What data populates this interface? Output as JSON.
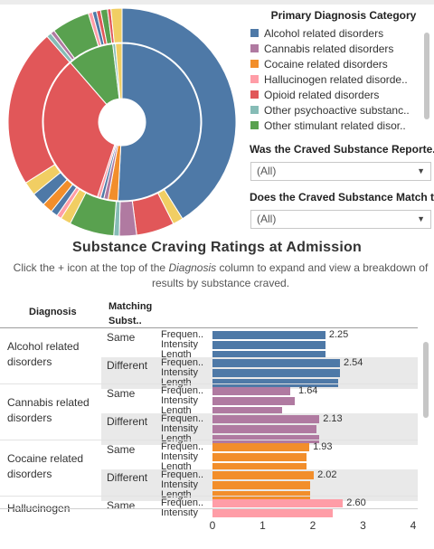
{
  "legend": {
    "title": "Primary Diagnosis Category",
    "items": [
      {
        "label": "Alcohol related disorders",
        "color": "#4e79a7"
      },
      {
        "label": "Cannabis related disorders",
        "color": "#b07aa1"
      },
      {
        "label": "Cocaine related disorders",
        "color": "#f28e2b"
      },
      {
        "label": "Hallucinogen related disorde..",
        "color": "#ff9da7"
      },
      {
        "label": "Opioid related disorders",
        "color": "#e15759"
      },
      {
        "label": "Other psychoactive substanc..",
        "color": "#86bcb6"
      },
      {
        "label": "Other stimulant related disor..",
        "color": "#59a14f"
      }
    ]
  },
  "filters": [
    {
      "title": "Was the  Craved Substance Reporte..",
      "value": "(All)"
    },
    {
      "title": "Does the Craved Substance Match t..",
      "value": "(All)"
    }
  ],
  "report": {
    "title": "Substance Craving Ratings at Admission",
    "subtitle_pre": "Click the + icon at the top of the ",
    "subtitle_em": "Diagnosis",
    "subtitle_post": " column to expand and view a breakdown of results by substance craved.",
    "col_diagnosis": "Diagnosis",
    "col_matching": "Matching Subst.."
  },
  "donut": {
    "outer": [
      {
        "color": "#4e79a7",
        "value": 42.0
      },
      {
        "color": "#f1ce63",
        "value": 1.5
      },
      {
        "color": "#e15759",
        "value": 5.5
      },
      {
        "color": "#b07aa1",
        "value": 2.5
      },
      {
        "color": "#86bcb6",
        "value": 0.8
      },
      {
        "color": "#59a14f",
        "value": 6.5
      },
      {
        "color": "#f1ce63",
        "value": 1.5
      },
      {
        "color": "#ff9da7",
        "value": 0.7
      },
      {
        "color": "#4e79a7",
        "value": 1.0
      },
      {
        "color": "#f28e2b",
        "value": 1.5
      },
      {
        "color": "#4e79a7",
        "value": 2.0
      },
      {
        "color": "#f1ce63",
        "value": 2.0
      },
      {
        "color": "#e15759",
        "value": 23.0
      },
      {
        "color": "#86bcb6",
        "value": 0.7
      },
      {
        "color": "#b07aa1",
        "value": 0.6
      },
      {
        "color": "#59a14f",
        "value": 5.5
      },
      {
        "color": "#ff9da7",
        "value": 0.6
      },
      {
        "color": "#4e79a7",
        "value": 0.6
      },
      {
        "color": "#e15759",
        "value": 0.6
      },
      {
        "color": "#59a14f",
        "value": 1.0
      },
      {
        "color": "#e15759",
        "value": 0.5
      },
      {
        "color": "#f1ce63",
        "value": 1.6
      }
    ],
    "inner": [
      {
        "color": "#4e79a7",
        "value": 45.5
      },
      {
        "color": "#f28e2b",
        "value": 1.8
      },
      {
        "color": "#b07aa1",
        "value": 0.8
      },
      {
        "color": "#4e79a7",
        "value": 0.6
      },
      {
        "color": "#ff9da7",
        "value": 0.6
      },
      {
        "color": "#e15759",
        "value": 30.0
      },
      {
        "color": "#59a14f",
        "value": 8.5
      },
      {
        "color": "#86bcb6",
        "value": 0.5
      },
      {
        "color": "#f1ce63",
        "value": 1.2
      }
    ]
  },
  "chart_data": {
    "type": "bar",
    "orientation": "horizontal",
    "title": "Substance Craving Ratings at Admission",
    "xlim": [
      0,
      4
    ],
    "x_ticks": [
      "0",
      "1",
      "2",
      "3",
      "4"
    ],
    "groups": [
      {
        "diagnosis": "Alcohol related disorders",
        "color": "#4e79a7",
        "rows": [
          {
            "match": "Same",
            "measures": [
              "Frequen..",
              "Intensity",
              "Length"
            ],
            "values": [
              2.25,
              2.25,
              2.25
            ],
            "label": "2.25"
          },
          {
            "match": "Different",
            "measures": [
              "Frequen..",
              "Intensity",
              "Length"
            ],
            "values": [
              2.54,
              2.54,
              2.5
            ],
            "label": "2.54"
          }
        ]
      },
      {
        "diagnosis": "Cannabis related disorders",
        "color": "#b07aa1",
        "rows": [
          {
            "match": "Same",
            "measures": [
              "Frequen..",
              "Intensity",
              "Length"
            ],
            "values": [
              1.55,
              1.64,
              1.38
            ],
            "label": "1.64"
          },
          {
            "match": "Different",
            "measures": [
              "Frequen..",
              "Intensity",
              "Length"
            ],
            "values": [
              2.13,
              2.08,
              2.13
            ],
            "label": "2.13"
          }
        ]
      },
      {
        "diagnosis": "Cocaine related disorders",
        "color": "#f28e2b",
        "rows": [
          {
            "match": "Same",
            "measures": [
              "Frequen..",
              "Intensity",
              "Length"
            ],
            "values": [
              1.93,
              1.87,
              1.88
            ],
            "label": "1.93"
          },
          {
            "match": "Different",
            "measures": [
              "Frequen..",
              "Intensity",
              "Length"
            ],
            "values": [
              2.02,
              1.95,
              1.95
            ],
            "label": "2.02"
          }
        ]
      },
      {
        "diagnosis": "Hallucinogen",
        "color": "#ff9da7",
        "rows": [
          {
            "match": "Same",
            "measures": [
              "Frequen..",
              "Intensity"
            ],
            "values": [
              2.6,
              2.4
            ],
            "label": "2.60"
          }
        ]
      }
    ]
  }
}
